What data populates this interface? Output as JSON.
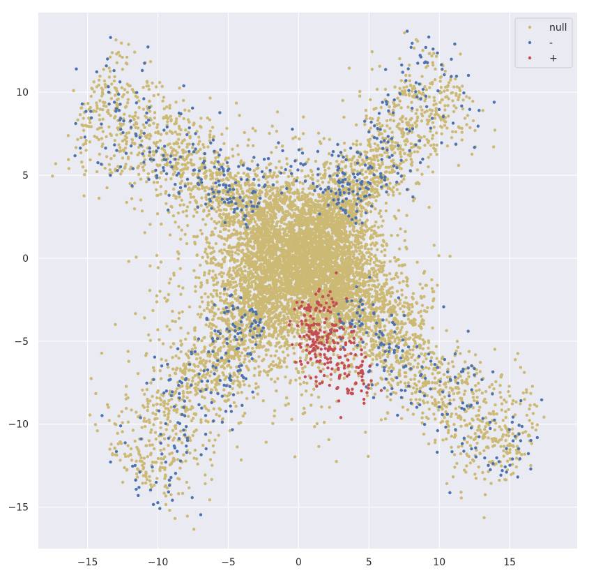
{
  "chart_data": {
    "type": "scatter",
    "title": "",
    "xlabel": "",
    "ylabel": "",
    "xlim": [
      -18.5,
      19.8
    ],
    "ylim": [
      -17.5,
      14.8
    ],
    "xticks": [
      -15,
      -10,
      -5,
      0,
      5,
      10,
      15
    ],
    "yticks": [
      -15,
      -10,
      -5,
      0,
      5,
      10
    ],
    "grid": true,
    "legend_position": "top-right",
    "series": [
      {
        "name": "null",
        "color": "#ccb974",
        "clusters": [
          {
            "cx": 0.5,
            "cy": 0.2,
            "sx": 2.2,
            "sy": 2.0,
            "n": 2500
          },
          {
            "cx": -1.0,
            "cy": -1.0,
            "sx": 3.6,
            "sy": 3.2,
            "n": 2000
          },
          {
            "cx": 1.0,
            "cy": -1.5,
            "sx": 2.4,
            "sy": 2.0,
            "n": 600
          }
        ],
        "arms": [
          {
            "x0": -2,
            "y0": 2,
            "x1": -15,
            "y1": 10,
            "spread": 1.8,
            "n": 1000
          },
          {
            "x0": 2,
            "y0": 2,
            "x1": 11,
            "y1": 11,
            "spread": 1.6,
            "n": 900
          },
          {
            "x0": -2,
            "y0": -2,
            "x1": -12,
            "y1": -13,
            "spread": 1.8,
            "n": 900
          },
          {
            "x0": 2,
            "y0": -2,
            "x1": 16,
            "y1": -12,
            "spread": 1.7,
            "n": 1000
          },
          {
            "x0": 3,
            "y0": -1,
            "x1": 9,
            "y1": -4,
            "spread": 1.4,
            "n": 350
          }
        ],
        "extremes": [
          {
            "x": -16.0,
            "y": 10.1
          },
          {
            "x": 16.5,
            "y": -12.5
          },
          {
            "x": 11.5,
            "y": 12.3
          },
          {
            "x": -12.5,
            "y": -13.5
          },
          {
            "x": -15.1,
            "y": 6.5
          },
          {
            "x": 15.0,
            "y": -11.2
          }
        ]
      },
      {
        "name": "-",
        "color": "#4c72b0",
        "arms": [
          {
            "x0": -3,
            "y0": 3,
            "x1": -15.5,
            "y1": 10,
            "spread": 1.8,
            "n": 190
          },
          {
            "x0": 3,
            "y0": 3,
            "x1": 11,
            "y1": 12,
            "spread": 1.6,
            "n": 160
          },
          {
            "x0": -3,
            "y0": -3,
            "x1": -11.5,
            "y1": -14,
            "spread": 1.9,
            "n": 190
          },
          {
            "x0": 3,
            "y0": -3,
            "x1": 16.5,
            "y1": -12.5,
            "spread": 1.7,
            "n": 190
          }
        ],
        "clusters": [
          {
            "cx": 0.5,
            "cy": 5.0,
            "sx": 3.2,
            "sy": 0.9,
            "n": 70
          }
        ],
        "extremes": [
          {
            "x": -15.8,
            "y": 11.4
          },
          {
            "x": 16.5,
            "y": -12.7
          },
          {
            "x": 11.1,
            "y": 12.9
          },
          {
            "x": -11.4,
            "y": -14.3
          },
          {
            "x": 13.9,
            "y": 9.4
          },
          {
            "x": 15.2,
            "y": -12.1
          },
          {
            "x": 7.4,
            "y": 11.2
          },
          {
            "x": -13.5,
            "y": 10.0
          }
        ]
      },
      {
        "name": "+",
        "color": "#c44e52",
        "clusters": [
          {
            "cx": 1.8,
            "cy": -4.8,
            "sx": 1.1,
            "sy": 1.2,
            "n": 150
          },
          {
            "cx": 3.3,
            "cy": -6.8,
            "sx": 1.0,
            "sy": 1.0,
            "n": 60
          },
          {
            "cx": 0.8,
            "cy": -3.0,
            "sx": 0.6,
            "sy": 0.6,
            "n": 25
          },
          {
            "cx": 4.5,
            "cy": -7.5,
            "sx": 0.6,
            "sy": 0.6,
            "n": 15
          }
        ]
      }
    ]
  }
}
